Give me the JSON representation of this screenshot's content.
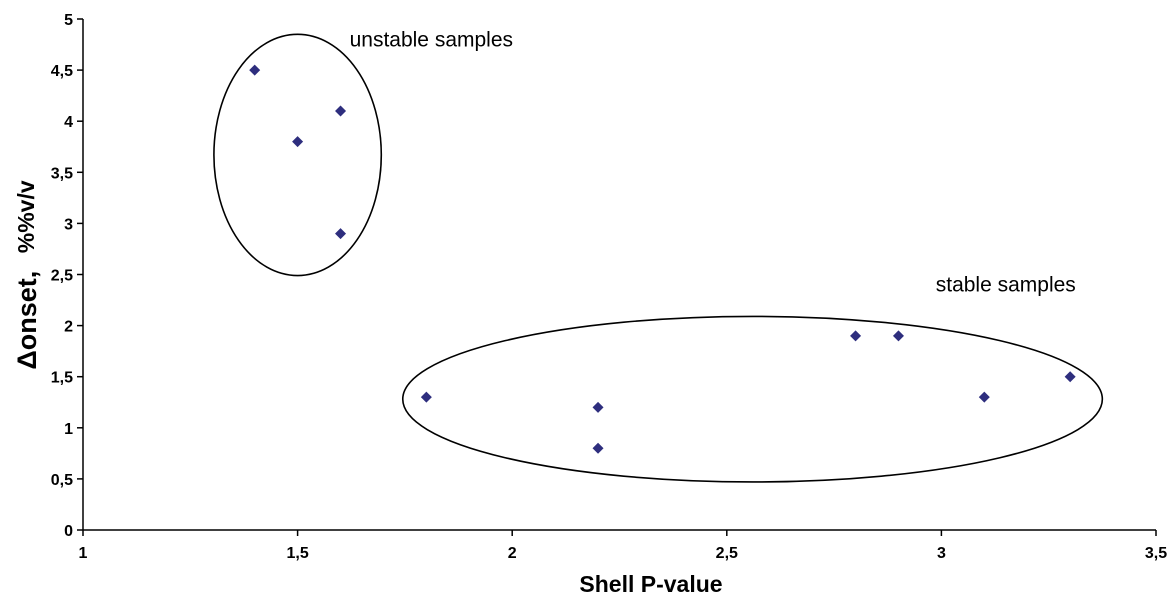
{
  "chart_data": {
    "type": "scatter",
    "title": "",
    "xlabel": "Shell P-value",
    "ylabel": {
      "main": "Δonset,",
      "unit": "%%v/v"
    },
    "xlim": [
      1,
      3.5
    ],
    "ylim": [
      0,
      5
    ],
    "x_ticks": [
      "1",
      "1,5",
      "2",
      "2,5",
      "3",
      "3,5"
    ],
    "y_ticks": [
      "0",
      "0,5",
      "1",
      "1,5",
      "2",
      "2,5",
      "3",
      "3,5",
      "4",
      "4,5",
      "5"
    ],
    "grid": false,
    "legend": "none",
    "series": [
      {
        "marker": "diamond",
        "color": "#2e2e7e",
        "points": [
          {
            "x": 1.4,
            "y": 4.5
          },
          {
            "x": 1.6,
            "y": 4.1
          },
          {
            "x": 1.5,
            "y": 3.8
          },
          {
            "x": 1.6,
            "y": 2.9
          },
          {
            "x": 1.8,
            "y": 1.3
          },
          {
            "x": 2.2,
            "y": 1.2
          },
          {
            "x": 2.2,
            "y": 0.8
          },
          {
            "x": 2.8,
            "y": 1.9
          },
          {
            "x": 2.9,
            "y": 1.9
          },
          {
            "x": 3.1,
            "y": 1.3
          },
          {
            "x": 3.3,
            "y": 1.5
          }
        ]
      }
    ],
    "annotations": [
      {
        "text": "unstable samples",
        "near_x": 1.5,
        "near_y": 4.8
      },
      {
        "text": "stable samples",
        "near_x": 3.15,
        "near_y": 2.4
      }
    ],
    "groups": [
      {
        "name": "unstable",
        "center": [
          1.5,
          3.67
        ],
        "radius_x": 0.195,
        "radius_y": 1.18
      },
      {
        "name": "stable",
        "center": [
          2.56,
          1.28
        ],
        "radius_x": 0.815,
        "radius_y": 0.81
      }
    ]
  },
  "colors": {
    "axis": "#000000",
    "marker": "#2e2e7e",
    "background": "#ffffff"
  }
}
